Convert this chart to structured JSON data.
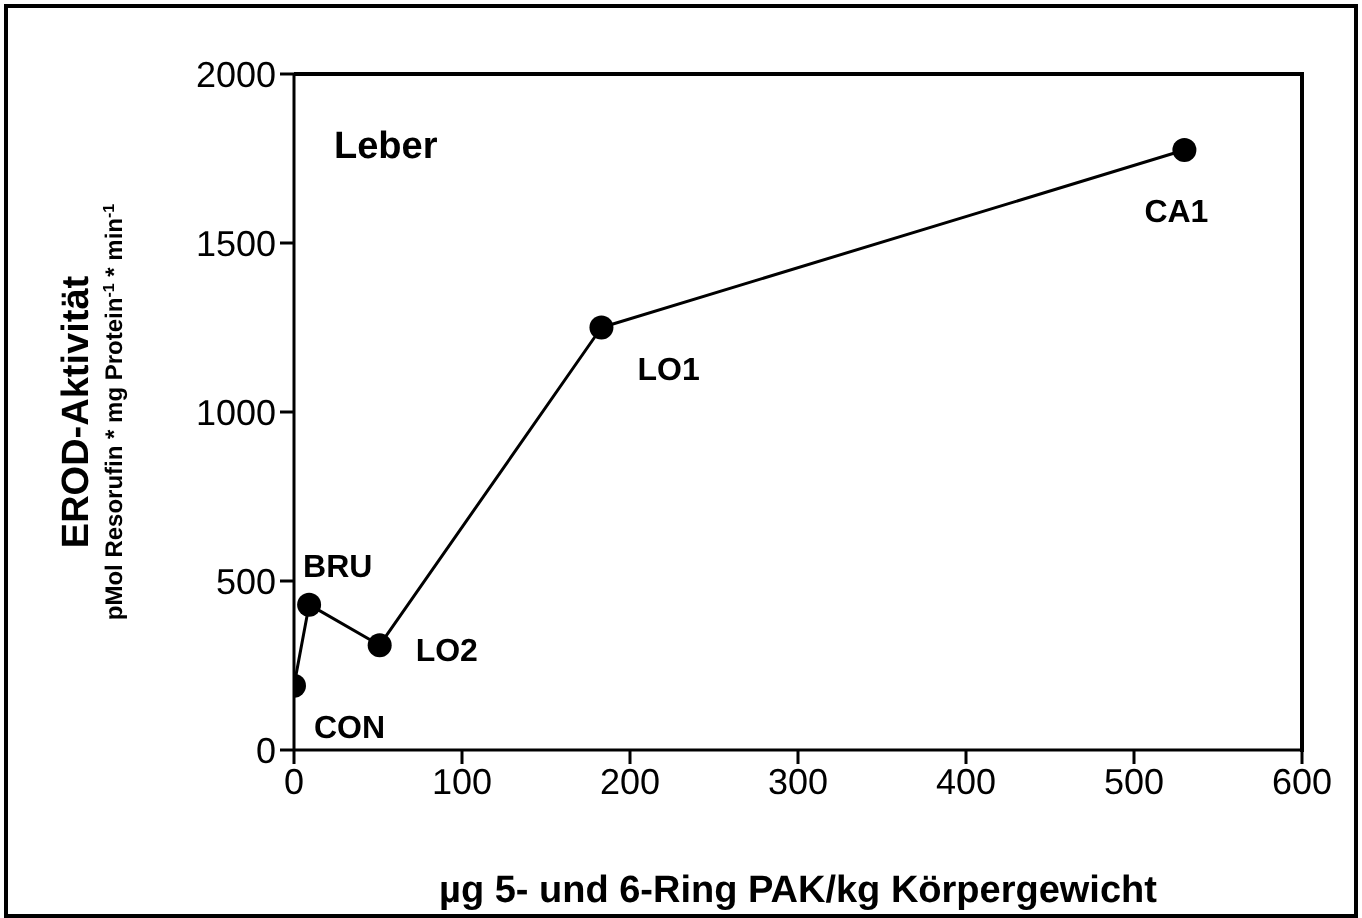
{
  "chart_data": {
    "type": "line",
    "title": "Leber",
    "xlabel": "µg 5- und 6-Ring PAK/kg Körpergewicht",
    "ylabel": "EROD-Aktivität\npMol Resorufin * mg Protein$^{-1}$ * min$^{-1}$",
    "x": [
      0,
      9,
      51,
      183,
      530
    ],
    "series": [
      {
        "color": "#000000",
        "values": [
          190,
          430,
          310,
          1250,
          1775
        ]
      }
    ],
    "xlim": [
      0,
      600
    ],
    "xticks": [
      0,
      100,
      200,
      300,
      400,
      500,
      600
    ],
    "ylim": [
      0,
      2000
    ],
    "yticks": [
      0,
      500,
      1000,
      1500,
      2000
    ],
    "marker": "circle",
    "line_style": "solid",
    "grid": false,
    "legend": false,
    "annotations": [
      {
        "text": "CON",
        "x": 0,
        "y": 190
      },
      {
        "text": "BRU",
        "x": 9,
        "y": 430
      },
      {
        "text": "LO2",
        "x": 51,
        "y": 310
      },
      {
        "text": "LO1",
        "x": 183,
        "y": 1250
      },
      {
        "text": "CA1",
        "x": 530,
        "y": 1775
      }
    ]
  }
}
